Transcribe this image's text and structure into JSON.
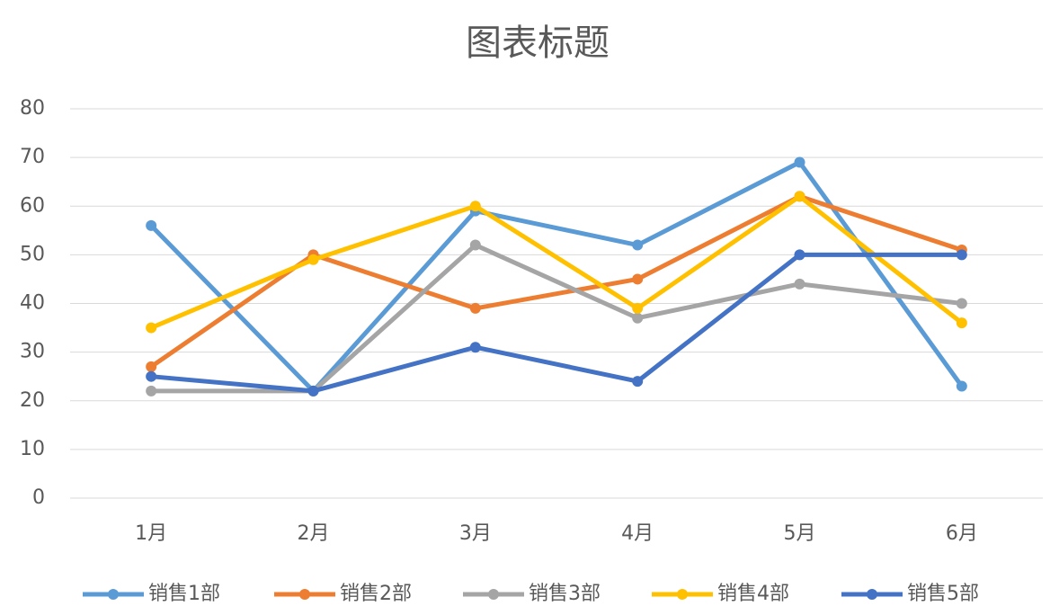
{
  "chart_data": {
    "type": "line",
    "title": "图表标题",
    "categories": [
      "1月",
      "2月",
      "3月",
      "4月",
      "5月",
      "6月"
    ],
    "series": [
      {
        "name": "销售1部",
        "color": "#5B9BD5",
        "values": [
          56,
          22,
          59,
          52,
          69,
          23
        ]
      },
      {
        "name": "销售2部",
        "color": "#ED7D31",
        "values": [
          27,
          50,
          39,
          45,
          62,
          51
        ]
      },
      {
        "name": "销售3部",
        "color": "#A5A5A5",
        "values": [
          22,
          22,
          52,
          37,
          44,
          40
        ]
      },
      {
        "name": "销售4部",
        "color": "#FFC000",
        "values": [
          35,
          49,
          60,
          39,
          62,
          36
        ]
      },
      {
        "name": "销售5部",
        "color": "#4472C4",
        "values": [
          25,
          22,
          31,
          24,
          50,
          50
        ]
      }
    ],
    "ylim": [
      0,
      80
    ],
    "yticks": [
      0,
      10,
      20,
      30,
      40,
      50,
      60,
      70,
      80
    ],
    "grid": true,
    "legend": "bottom"
  }
}
